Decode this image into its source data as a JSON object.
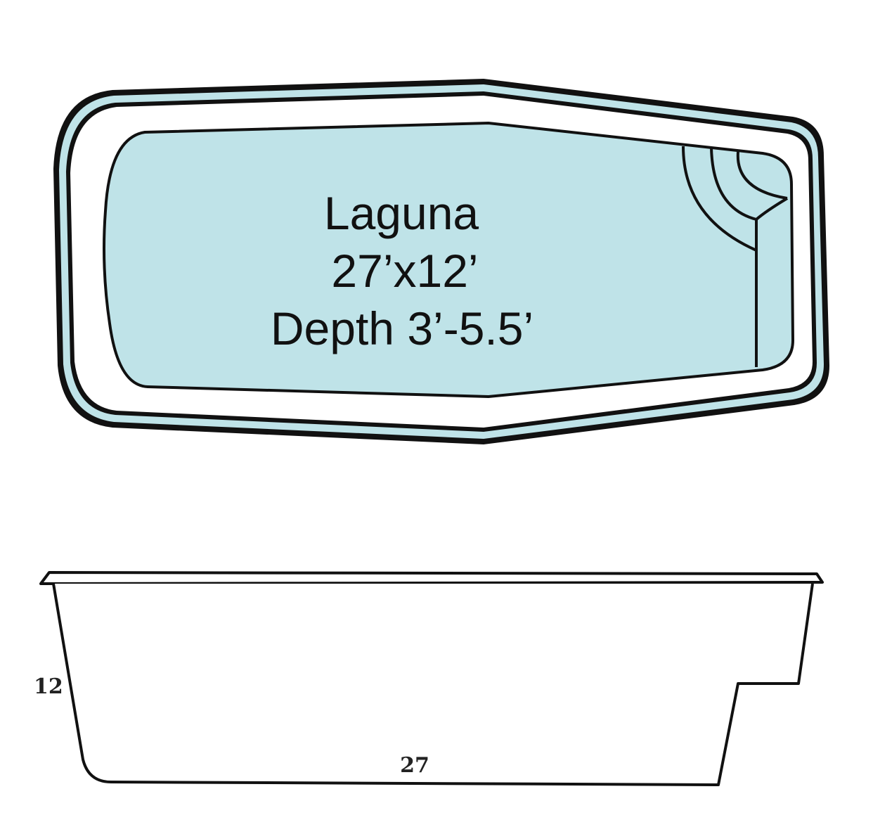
{
  "pool": {
    "name": "Laguna",
    "dimensions": "27’x12’",
    "depth": "Depth 3’-5.5’"
  },
  "profile": {
    "height_label": "12",
    "length_label": "27"
  },
  "colors": {
    "water": "#bfe3e8",
    "outline": "#111111",
    "background": "#ffffff"
  }
}
